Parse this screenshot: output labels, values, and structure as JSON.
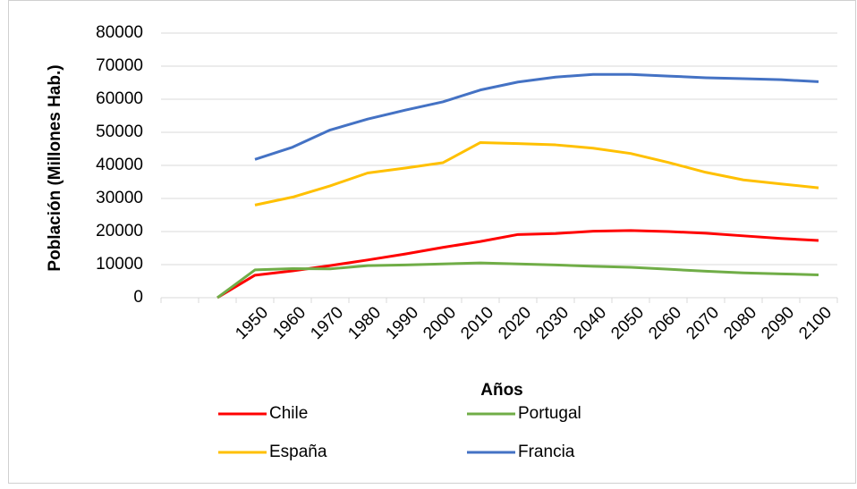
{
  "chart_data": {
    "type": "line",
    "x_label": "Años",
    "y_label": "Población (Millones Hab.)",
    "categories": [
      null,
      null,
      "1950",
      "1960",
      "1970",
      "1980",
      "1990",
      "2000",
      "2010",
      "2020",
      "2030",
      "2040",
      "2050",
      "2060",
      "2070",
      "2080",
      "2090",
      "2100"
    ],
    "series": [
      {
        "name": "Chile",
        "color": "#ff0000",
        "values": [
          null,
          0,
          6800,
          8100,
          9700,
          11400,
          13200,
          15200,
          17000,
          19100,
          19400,
          20100,
          20300,
          20000,
          19500,
          18700,
          17900,
          17300
        ]
      },
      {
        "name": "Portugal",
        "color": "#70ad47",
        "values": [
          null,
          0,
          8400,
          8800,
          8700,
          9700,
          9900,
          10200,
          10500,
          10200,
          9900,
          9500,
          9200,
          8600,
          8000,
          7500,
          7200,
          6900
        ]
      },
      {
        "name": "España",
        "color": "#ffc000",
        "values": [
          null,
          null,
          28000,
          30400,
          33800,
          37700,
          39200,
          40800,
          46900,
          46600,
          46200,
          45200,
          43600,
          40900,
          37900,
          35600,
          34400,
          33200
        ]
      },
      {
        "name": "Francia",
        "color": "#4472c4",
        "values": [
          null,
          null,
          41800,
          45500,
          50700,
          54000,
          56700,
          59200,
          62800,
          65200,
          66700,
          67500,
          67500,
          67000,
          66500,
          66200,
          65900,
          65300
        ]
      }
    ],
    "ylim": [
      0,
      80000
    ],
    "yticks": [
      0,
      10000,
      20000,
      30000,
      40000,
      50000,
      60000,
      70000,
      80000
    ],
    "grid": true
  }
}
